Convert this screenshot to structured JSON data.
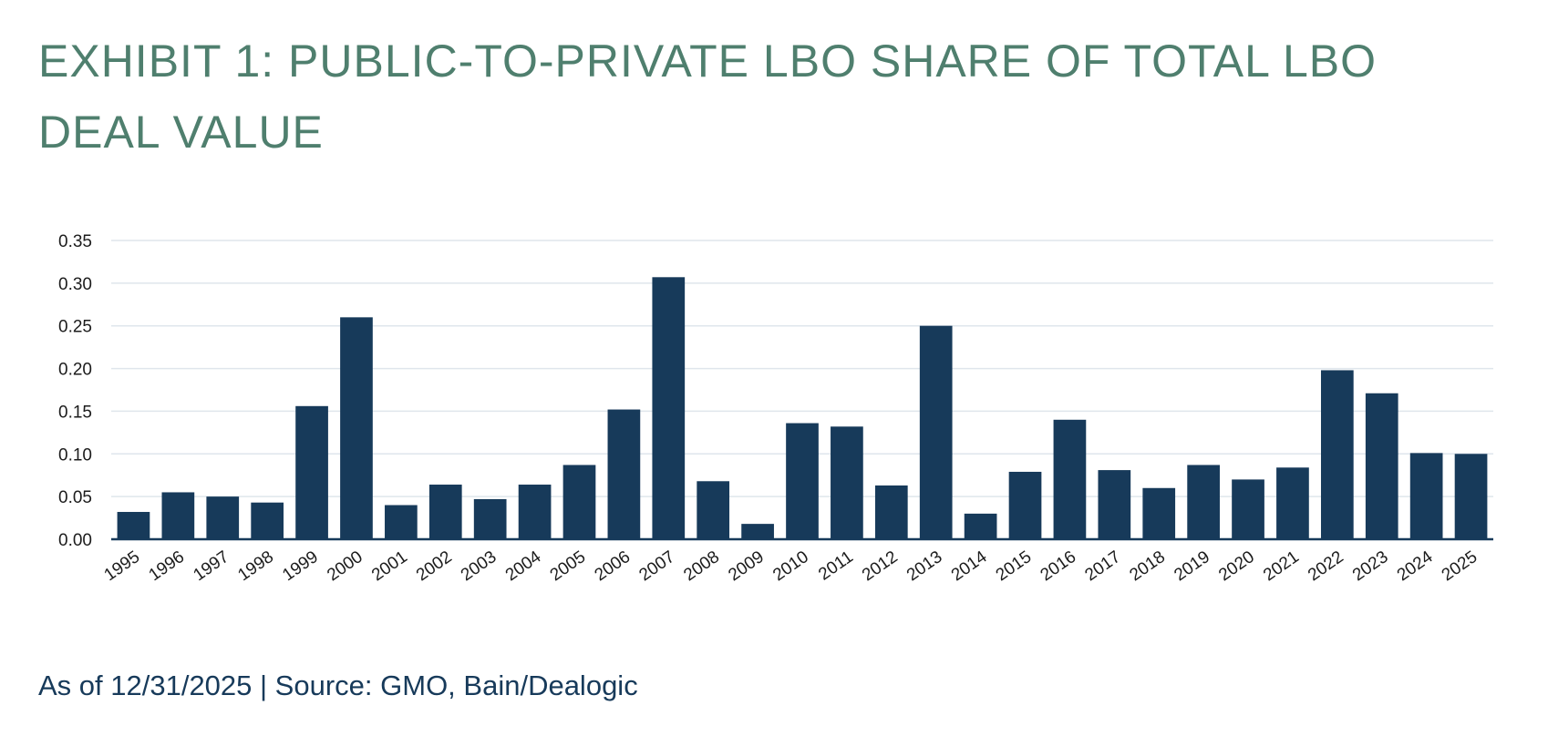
{
  "title": "EXHIBIT 1: PUBLIC-TO-PRIVATE LBO SHARE OF TOTAL LBO DEAL VALUE",
  "footer": "As of 12/31/2025 | Source: GMO, Bain/Dealogic",
  "colors": {
    "title": "#4f7f6e",
    "bar": "#173a5a",
    "grid": "#dfe6ec",
    "footer": "#173a5a"
  },
  "chart_data": {
    "type": "bar",
    "title": "EXHIBIT 1: PUBLIC-TO-PRIVATE LBO SHARE OF TOTAL LBO DEAL VALUE",
    "xlabel": "",
    "ylabel": "",
    "ylim": [
      0,
      0.35
    ],
    "yticks": [
      "0.00",
      "0.05",
      "0.10",
      "0.15",
      "0.20",
      "0.25",
      "0.30",
      "0.35"
    ],
    "grid": true,
    "legend": "none",
    "categories": [
      "1995",
      "1996",
      "1997",
      "1998",
      "1999",
      "2000",
      "2001",
      "2002",
      "2003",
      "2004",
      "2005",
      "2006",
      "2007",
      "2008",
      "2009",
      "2010",
      "2011",
      "2012",
      "2013",
      "2014",
      "2015",
      "2016",
      "2017",
      "2018",
      "2019",
      "2020",
      "2021",
      "2022",
      "2023",
      "2024",
      "2025"
    ],
    "values": [
      0.032,
      0.055,
      0.05,
      0.043,
      0.156,
      0.26,
      0.04,
      0.064,
      0.047,
      0.064,
      0.087,
      0.152,
      0.307,
      0.068,
      0.018,
      0.136,
      0.132,
      0.063,
      0.25,
      0.03,
      0.079,
      0.14,
      0.081,
      0.06,
      0.087,
      0.07,
      0.084,
      0.198,
      0.171,
      0.101,
      0.1
    ]
  }
}
